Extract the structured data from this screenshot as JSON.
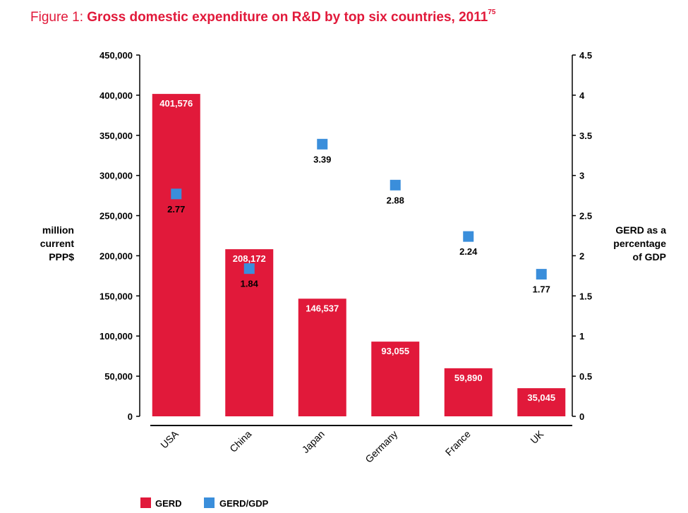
{
  "title": {
    "lead": "Figure 1: ",
    "main": "Gross domestic expenditure on R&D by top six countries, 2011",
    "sup": "75"
  },
  "chart_data": {
    "type": "bar",
    "categories": [
      "USA",
      "China",
      "Japan",
      "Germany",
      "France",
      "UK"
    ],
    "series": [
      {
        "name": "GERD",
        "type": "bar",
        "axis": "left",
        "color": "#e1193a",
        "values": [
          401576,
          208172,
          146537,
          93055,
          59890,
          35045
        ],
        "labels": [
          "401,576",
          "208,172",
          "146,537",
          "93,055",
          "59,890",
          "35,045"
        ]
      },
      {
        "name": "GERD/GDP",
        "type": "scatter",
        "axis": "right",
        "color": "#3a8edb",
        "values": [
          2.77,
          1.84,
          3.39,
          2.88,
          2.24,
          1.77
        ],
        "labels": [
          "2.77",
          "1.84",
          "3.39",
          "2.88",
          "2.24",
          "1.77"
        ]
      }
    ],
    "y_left": {
      "label": [
        "million",
        "current",
        "PPP$"
      ],
      "range": [
        0,
        450000
      ],
      "ticks": [
        "0",
        "50,000",
        "100,000",
        "150,000",
        "200,000",
        "250,000",
        "300,000",
        "350,000",
        "400,000",
        "450,000"
      ]
    },
    "y_right": {
      "label": [
        "GERD as a",
        "percentage",
        "of GDP"
      ],
      "range": [
        0,
        4.5
      ],
      "ticks": [
        "0",
        "0.5",
        "1",
        "1.5",
        "2",
        "2.5",
        "3",
        "3.5",
        "4",
        "4.5"
      ]
    },
    "grid": false,
    "legend_position": "bottom-left",
    "legend": [
      "GERD",
      "GERD/GDP"
    ]
  }
}
